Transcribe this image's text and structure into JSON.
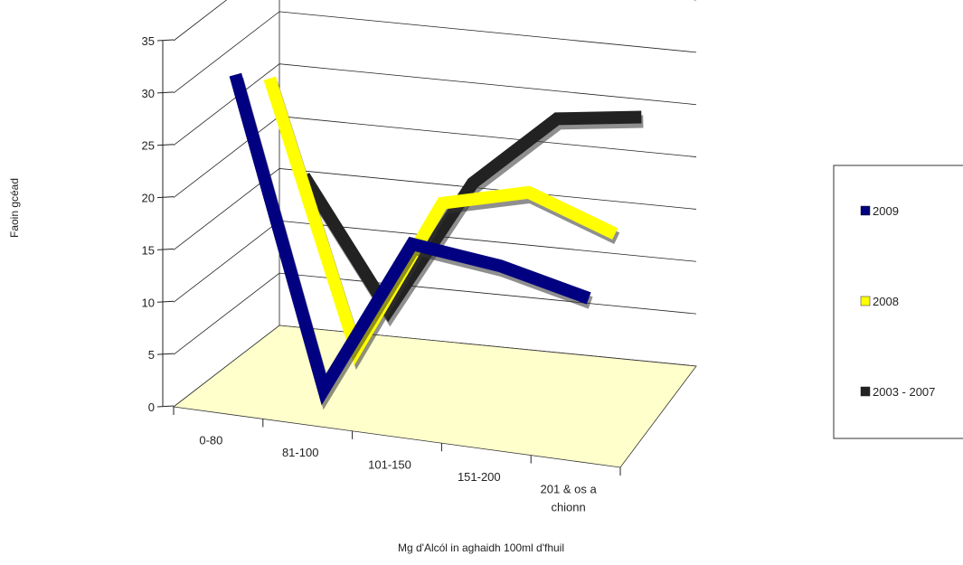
{
  "chart_data": {
    "type": "line",
    "style": "3d-ribbon",
    "categories": [
      "0-80",
      "81-100",
      "101-150",
      "151-200",
      "201 & os a chionn"
    ],
    "category_lines": [
      [
        "0-80"
      ],
      [
        "81-100"
      ],
      [
        "101-150"
      ],
      [
        "151-200"
      ],
      [
        "201 & os a",
        "chionn"
      ]
    ],
    "series": [
      {
        "name": "2009",
        "color": "#000080",
        "values": [
          31,
          2,
          17,
          16,
          14
        ]
      },
      {
        "name": "2008",
        "color": "#ffff00",
        "values": [
          28,
          3,
          18,
          20,
          17
        ]
      },
      {
        "name": "2003 - 2007",
        "color": "#222222",
        "values": [
          16,
          4,
          17,
          24,
          25
        ]
      }
    ],
    "xlabel": "Mg d'Alcól in aghaidh 100ml d'fhuil",
    "ylabel": "Faoin gcéad",
    "ylim": [
      0,
      35
    ],
    "yticks": [
      0,
      5,
      10,
      15,
      20,
      25,
      30,
      35
    ],
    "grid": true,
    "floor_color": "#ffffcc",
    "legend_position": "right"
  }
}
